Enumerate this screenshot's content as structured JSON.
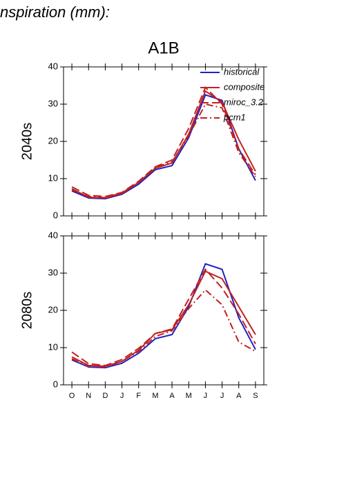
{
  "header": {
    "title": "nspiration (mm):"
  },
  "chart_data": [
    {
      "type": "line",
      "title": "A1B",
      "ylabel": "2040s",
      "legend": "upper right",
      "ylim": [
        0,
        40
      ],
      "yticks": [
        0,
        10,
        20,
        30,
        40
      ],
      "series": [
        {
          "name": "historical",
          "color": "#2020c0",
          "dash": "solid",
          "values": [
            6.7,
            4.8,
            4.6,
            5.8,
            8.5,
            12.4,
            13.5,
            21,
            32.5,
            31,
            18,
            9.5
          ]
        },
        {
          "name": "composite",
          "color": "#c02020",
          "dash": "solid",
          "values": [
            7.3,
            5.0,
            4.8,
            6.0,
            9.0,
            12.8,
            14.2,
            22,
            33.5,
            30.5,
            20.5,
            12
          ]
        },
        {
          "name": "miroc_3.2",
          "color": "#c02020",
          "dash": "dash",
          "values": [
            7.8,
            5.5,
            5.2,
            6.3,
            9.3,
            13.2,
            15,
            23.5,
            34.5,
            30,
            18,
            11
          ]
        },
        {
          "name": "pcm1",
          "color": "#c02020",
          "dash": "dashdot",
          "values": [
            7.0,
            5.2,
            4.9,
            6.2,
            9.0,
            13.0,
            14.5,
            21.5,
            30,
            29,
            17,
            10.5
          ]
        }
      ]
    },
    {
      "type": "line",
      "ylabel": "2080s",
      "categories": [
        "O",
        "N",
        "D",
        "J",
        "F",
        "M",
        "A",
        "M",
        "J",
        "J",
        "A",
        "S"
      ],
      "ylim": [
        0,
        40
      ],
      "yticks": [
        0,
        10,
        20,
        30,
        40
      ],
      "series": [
        {
          "color": "#2020c0",
          "dash": "solid",
          "values": [
            6.7,
            4.8,
            4.6,
            5.8,
            8.5,
            12.4,
            13.5,
            21,
            32.5,
            31,
            18,
            9.5
          ]
        },
        {
          "color": "#c02020",
          "dash": "solid",
          "values": [
            7.5,
            5.2,
            5.0,
            6.3,
            9.3,
            13.8,
            14.8,
            21.5,
            30.5,
            28.5,
            21,
            13.5
          ]
        },
        {
          "color": "#c02020",
          "dash": "dash",
          "values": [
            8.8,
            5.7,
            5.2,
            6.8,
            9.8,
            13.8,
            15,
            23,
            31,
            26,
            19,
            11
          ]
        },
        {
          "color": "#c02020",
          "dash": "dashdot",
          "values": [
            7.0,
            5.0,
            4.8,
            6.3,
            9.0,
            13.0,
            14.5,
            20.5,
            25.5,
            21.5,
            11.5,
            9.0
          ]
        }
      ]
    }
  ]
}
